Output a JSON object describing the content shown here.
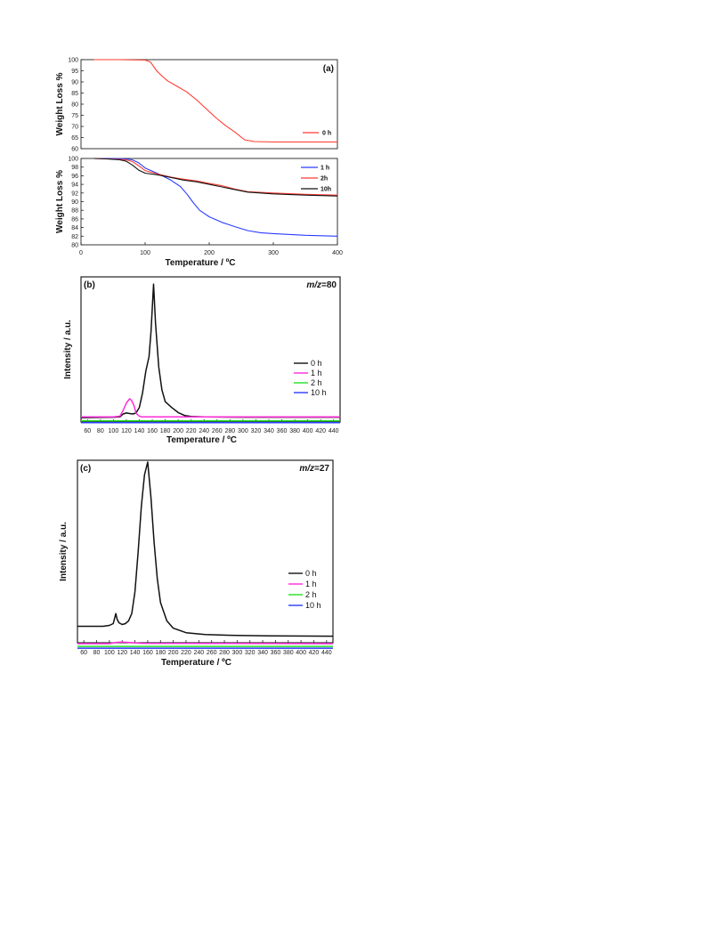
{
  "chart_data": [
    {
      "panel": "(a)",
      "type": "line",
      "ylabel": "Weight Loss %",
      "xlim": [
        0,
        400
      ],
      "ylim": [
        60,
        100
      ],
      "yticks": [
        "100",
        "95",
        "90",
        "85",
        "80",
        "75",
        "70",
        "65",
        "60"
      ],
      "series": [
        {
          "name": "0 h",
          "color": "#ff3b30",
          "x": [
            20,
            60,
            100,
            108,
            112,
            118,
            125,
            135,
            150,
            165,
            180,
            195,
            210,
            225,
            240,
            255,
            270,
            300,
            350,
            400
          ],
          "y": [
            100,
            100,
            99.8,
            99,
            97.5,
            95,
            93,
            90.5,
            88,
            85.5,
            82,
            78,
            74,
            70.5,
            67.5,
            64,
            63.2,
            63,
            63,
            63
          ]
        }
      ]
    },
    {
      "panel": "",
      "type": "line",
      "ylabel": "Weight Loss %",
      "xlabel": "Temperature / ºC",
      "xlim": [
        0,
        400
      ],
      "ylim": [
        80,
        100
      ],
      "xticks": [
        "0",
        "100",
        "200",
        "300",
        "400"
      ],
      "yticks": [
        "100",
        "98",
        "96",
        "94",
        "92",
        "90",
        "88",
        "86",
        "84",
        "82",
        "80"
      ],
      "series": [
        {
          "name": "1 h",
          "color": "#2a3cff",
          "x": [
            20,
            50,
            70,
            80,
            90,
            100,
            120,
            140,
            155,
            165,
            175,
            185,
            200,
            220,
            240,
            260,
            280,
            300,
            350,
            400
          ],
          "y": [
            100,
            100,
            99.9,
            99.7,
            99,
            97.8,
            96.5,
            95,
            93.5,
            91.8,
            89.8,
            88,
            86.5,
            85.2,
            84.2,
            83.3,
            82.8,
            82.6,
            82.2,
            82
          ]
        },
        {
          "name": "2h",
          "color": "#ff3b30",
          "x": [
            20,
            40,
            60,
            70,
            80,
            90,
            100,
            120,
            140,
            160,
            180,
            200,
            220,
            240,
            260,
            300,
            350,
            400
          ],
          "y": [
            100,
            99.9,
            99.8,
            99.7,
            99.3,
            98.3,
            97.2,
            96.4,
            95.7,
            95.2,
            94.8,
            94.2,
            93.7,
            92.9,
            92.3,
            92,
            91.7,
            91.5
          ]
        },
        {
          "name": "10h",
          "color": "#111111",
          "x": [
            20,
            40,
            60,
            70,
            80,
            90,
            100,
            120,
            140,
            160,
            180,
            200,
            220,
            240,
            260,
            300,
            350,
            400
          ],
          "y": [
            100,
            99.9,
            99.7,
            99.4,
            98.5,
            97.3,
            96.6,
            96.2,
            95.6,
            95,
            94.6,
            94,
            93.4,
            92.8,
            92.2,
            91.8,
            91.5,
            91.3
          ]
        }
      ]
    },
    {
      "panel": "(b)",
      "type": "line",
      "annotation": {
        "prefix": "m/z",
        "suffix": "=80"
      },
      "ylabel": "Intensity / a.u.",
      "xlabel": "Temperature / ºC",
      "xlim": [
        50,
        450
      ],
      "ylim": [
        0,
        100
      ],
      "xticks": [
        "60",
        "80",
        "100",
        "120",
        "140",
        "160",
        "180",
        "200",
        "220",
        "240",
        "260",
        "280",
        "300",
        "320",
        "340",
        "360",
        "380",
        "400",
        "420",
        "440"
      ],
      "series": [
        {
          "name": "0 h",
          "color": "#111111",
          "x": [
            50,
            100,
            110,
            115,
            120,
            125,
            130,
            135,
            140,
            145,
            150,
            155,
            158,
            162,
            165,
            170,
            175,
            180,
            190,
            200,
            210,
            220,
            240,
            300,
            450
          ],
          "y": [
            3,
            3.3,
            3.5,
            5.5,
            6.2,
            5.8,
            5.5,
            6.2,
            10,
            20,
            35,
            45,
            62,
            95,
            68,
            38,
            22,
            14,
            10,
            6.5,
            4.5,
            3.8,
            3.5,
            3.3,
            3.3
          ]
        },
        {
          "name": "1 h",
          "color": "#ff2bd8",
          "x": [
            50,
            100,
            110,
            115,
            120,
            125,
            128,
            132,
            135,
            140,
            145,
            150,
            200,
            450
          ],
          "y": [
            3.5,
            3.5,
            4,
            8,
            13,
            16,
            15,
            11,
            6,
            4,
            3.5,
            3.5,
            3.5,
            3.5
          ]
        },
        {
          "name": "2 h",
          "color": "#22e022",
          "x": [
            50,
            450
          ],
          "y": [
            0.8,
            0.8
          ]
        },
        {
          "name": "10 h",
          "color": "#2a3cff",
          "x": [
            50,
            450
          ],
          "y": [
            -0.5,
            -0.5
          ]
        }
      ]
    },
    {
      "panel": "(c)",
      "type": "line",
      "annotation": {
        "prefix": "m/z",
        "suffix": "=27"
      },
      "ylabel": "Intensity / a.u.",
      "xlabel": "Temperature / ºC",
      "xlim": [
        50,
        450
      ],
      "ylim": [
        0,
        100
      ],
      "xticks": [
        "60",
        "80",
        "100",
        "120",
        "140",
        "160",
        "180",
        "200",
        "220",
        "240",
        "260",
        "280",
        "300",
        "320",
        "340",
        "360",
        "380",
        "400",
        "420",
        "440"
      ],
      "series": [
        {
          "name": "0 h",
          "color": "#111111",
          "x": [
            50,
            90,
            100,
            106,
            110,
            112,
            115,
            120,
            125,
            130,
            135,
            140,
            145,
            150,
            155,
            160,
            165,
            170,
            175,
            180,
            190,
            200,
            220,
            250,
            300,
            350,
            450
          ],
          "y": [
            9,
            9,
            9.5,
            10.5,
            16,
            13,
            11,
            10,
            10.5,
            12,
            16,
            28,
            50,
            75,
            92,
            99,
            80,
            55,
            35,
            22,
            12,
            8,
            5.5,
            4.5,
            4,
            3.8,
            3.6
          ]
        },
        {
          "name": "1 h",
          "color": "#ff2bd8",
          "x": [
            50,
            100,
            110,
            120,
            130,
            150,
            450
          ],
          "y": [
            -0.5,
            -0.5,
            0.2,
            0.4,
            0.2,
            -0.3,
            -0.5
          ]
        },
        {
          "name": "2 h",
          "color": "#22e022",
          "x": [
            50,
            450
          ],
          "y": [
            -2,
            -2
          ]
        },
        {
          "name": "10 h",
          "color": "#2a3cff",
          "x": [
            50,
            450
          ],
          "y": [
            -3,
            -3
          ]
        }
      ]
    }
  ]
}
